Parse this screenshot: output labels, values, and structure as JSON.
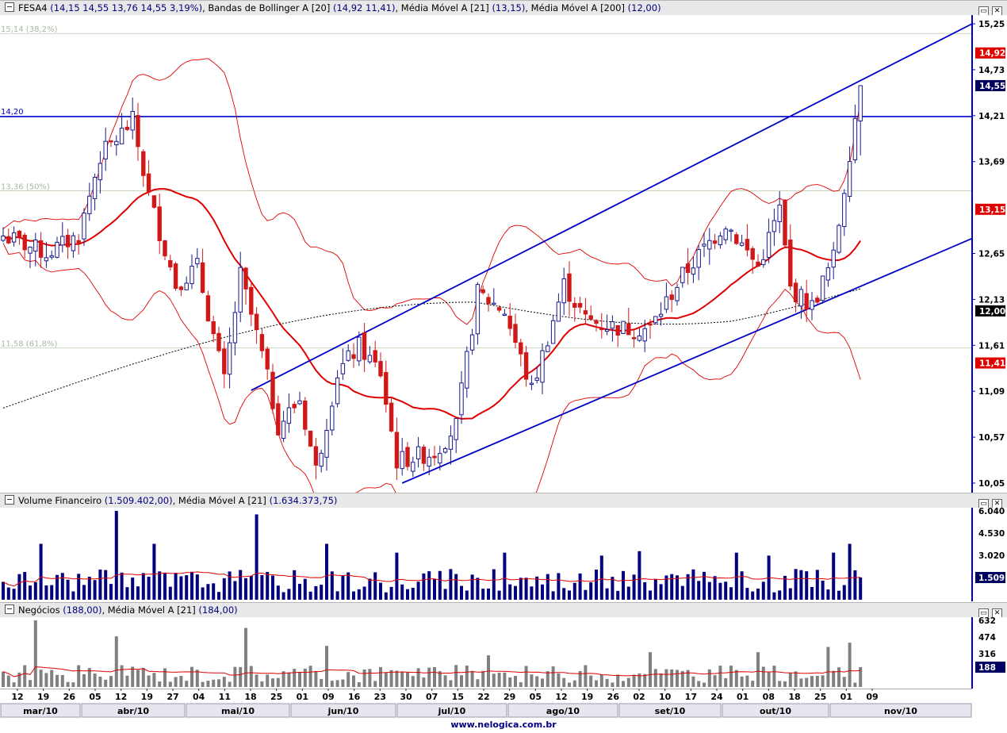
{
  "panels": {
    "price": {
      "symbol": "FESA4",
      "quote": "(14,15  14,55  13,76  14,55  3,19%)",
      "ind1_name": "Bandas de Bollinger A [20]",
      "ind1_vals": "(14,92  11,41)",
      "ind2_name": "Média Móvel A [21]",
      "ind2_vals": "(13,15)",
      "ind3_name": "Média Móvel A [200]",
      "ind3_vals": "(12,00)"
    },
    "volume": {
      "name": "Volume Financeiro",
      "vals": "(1.509.402,00)",
      "ma_name": "Média Móvel A [21]",
      "ma_vals": "(1.634.373,75)"
    },
    "trades": {
      "name": "Negócios",
      "vals": "(188,00)",
      "ma_name": "Média Móvel A [21]",
      "ma_vals": "(184,00)"
    }
  },
  "footer": "www.nelogica.com.br",
  "chart_data": [
    {
      "type": "candlestick",
      "symbol": "FESA4",
      "ylim": [
        10.05,
        15.25
      ],
      "yticks": [
        "15,25",
        "14,73",
        "14,21",
        "13,69",
        "12,65",
        "12,13",
        "11,61",
        "11,09",
        "10,57",
        "10,05"
      ],
      "price_labels": [
        {
          "text": "14,92",
          "value": 14.92,
          "color": "#e00000"
        },
        {
          "text": "14,55",
          "value": 14.55,
          "color": "#000060"
        },
        {
          "text": "13,15",
          "value": 13.15,
          "color": "#e00000"
        },
        {
          "text": "12,00",
          "value": 12.0,
          "color": "#000000"
        },
        {
          "text": "11,41",
          "value": 11.41,
          "color": "#e00000"
        }
      ],
      "fib_levels": [
        {
          "text": "15,14 (38,2%)",
          "value": 15.14
        },
        {
          "text": "13,36 (50%)",
          "value": 13.36
        },
        {
          "text": "11,58 (61,8%)",
          "value": 11.58
        }
      ],
      "hline": {
        "text": "14,20",
        "value": 14.2
      },
      "last_ohlc": {
        "open": 14.15,
        "high": 14.55,
        "low": 13.76,
        "close": 14.55
      },
      "series": [
        {
          "name": "Bandas de Bollinger A [20] superior",
          "last": 14.92
        },
        {
          "name": "Bandas de Bollinger A [20] inferior",
          "last": 11.41
        },
        {
          "name": "Média Móvel A [21]",
          "last": 13.15
        },
        {
          "name": "Média Móvel A [200]",
          "last": 12.0
        }
      ]
    },
    {
      "type": "bar",
      "name": "Volume Financeiro",
      "ylim": [
        0,
        6040
      ],
      "yticks": [
        "6.040",
        "4.530",
        "3.020"
      ],
      "last_label": "1.509",
      "last_value": 1509.402,
      "ma_last": 1634.373
    },
    {
      "type": "bar",
      "name": "Negócios",
      "ylim": [
        0,
        632
      ],
      "yticks": [
        "632",
        "474",
        "316"
      ],
      "last_label": "188",
      "last_value": 188,
      "ma_last": 184
    }
  ],
  "x_axis": {
    "days": [
      "12",
      "19",
      "26",
      "05",
      "12",
      "19",
      "27",
      "04",
      "11",
      "18",
      "25",
      "01",
      "09",
      "16",
      "23",
      "30",
      "07",
      "15",
      "22",
      "29",
      "05",
      "12",
      "19",
      "26",
      "02",
      "10",
      "17",
      "24",
      "01",
      "08",
      "18",
      "25",
      "01",
      "09"
    ],
    "months": [
      "mar/10",
      "abr/10",
      "mai/10",
      "jun/10",
      "jul/10",
      "ago/10",
      "set/10",
      "out/10",
      "nov/10"
    ]
  },
  "colors": {
    "up": "#1a1a8c",
    "down": "#d01818",
    "bollinger": "#e00000",
    "ma21": "#e00000",
    "ma200": "#000000",
    "trend": "#0000c8",
    "volume": "#000080",
    "trades": "#808080",
    "axis": "#0000c8"
  }
}
